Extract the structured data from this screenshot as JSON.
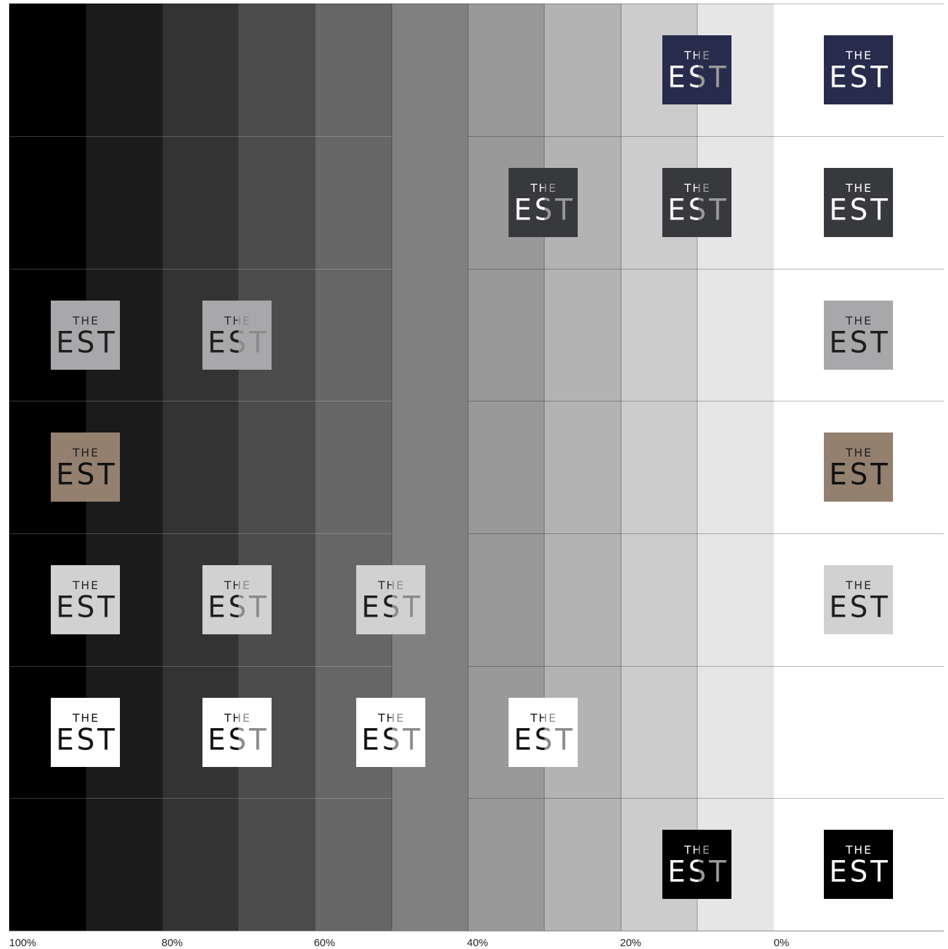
{
  "scale_labels": [
    "100%",
    "80%",
    "60%",
    "40%",
    "20%",
    "0%"
  ],
  "band_colors": [
    "#000000",
    "#1b1b1b",
    "#333333",
    "#4c4c4c",
    "#666666",
    "#808080",
    "#999999",
    "#b3b3b3",
    "#cccccc",
    "#e6e6e6",
    "#ffffff"
  ],
  "logo_text": {
    "small": "THE",
    "big": "EST"
  },
  "logo_variants": [
    {
      "name": "navy",
      "bg": "#272c4c",
      "small_color": "#ffffff",
      "big_color": "#ffffff",
      "placements": [
        "tile-20",
        "tile-0"
      ]
    },
    {
      "name": "charcoal",
      "bg": "#38393d",
      "small_color": "#ffffff",
      "big_color": "#ffffff",
      "placements": [
        "tile-40",
        "tile-20",
        "tile-0"
      ]
    },
    {
      "name": "grey",
      "bg": "#a8a7aa",
      "small_color": "#2a2a2a",
      "big_color": "#1e1e1e",
      "placements": [
        "tile-100",
        "tile-80",
        "tile-0"
      ]
    },
    {
      "name": "taupe",
      "bg": "#94806f",
      "small_color": "#1e1e1e",
      "big_color": "#111111",
      "placements": [
        "tile-100",
        "tile-0"
      ]
    },
    {
      "name": "light-grey",
      "bg": "#d1d1d1",
      "small_color": "#262626",
      "big_color": "#1e1e1e",
      "placements": [
        "tile-100",
        "tile-80",
        "tile-60",
        "tile-0"
      ]
    },
    {
      "name": "white",
      "bg": "#ffffff",
      "small_color": "#111111",
      "big_color": "#111111",
      "placements": [
        "tile-100",
        "tile-80",
        "tile-60",
        "tile-40"
      ]
    },
    {
      "name": "black",
      "bg": "#000000",
      "small_color": "#ffffff",
      "big_color": "#ffffff",
      "placements": [
        "tile-20",
        "tile-0"
      ]
    }
  ]
}
